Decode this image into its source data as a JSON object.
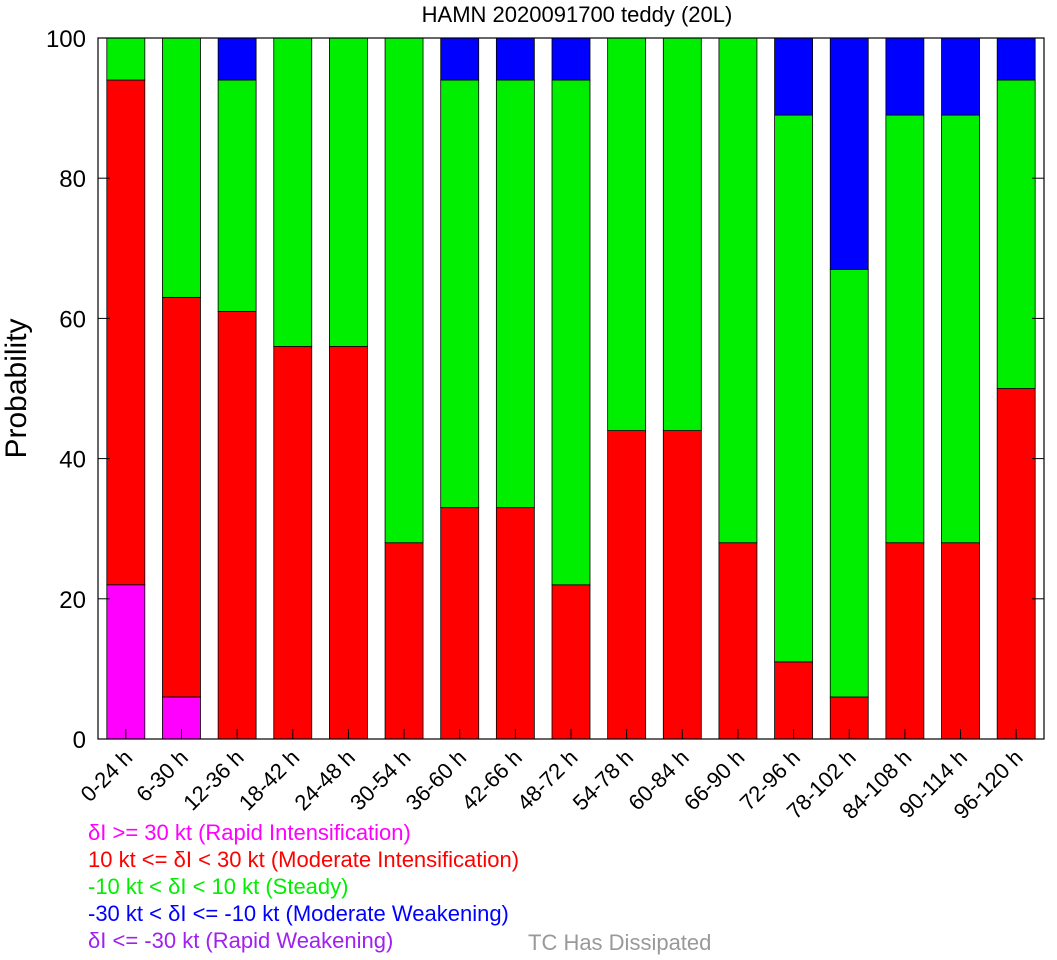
{
  "chart_data": {
    "type": "bar",
    "stacked": true,
    "title": "HAMN 2020091700 teddy (20L)",
    "xlabel": "",
    "ylabel": "Probability",
    "ylim": [
      0,
      100
    ],
    "yticks": [
      0,
      20,
      40,
      60,
      80,
      100
    ],
    "categories": [
      "0-24 h",
      "6-30 h",
      "12-36 h",
      "18-42 h",
      "24-48 h",
      "30-54 h",
      "36-60 h",
      "42-66 h",
      "48-72 h",
      "54-78 h",
      "60-84 h",
      "66-90 h",
      "72-96 h",
      "78-102 h",
      "84-108 h",
      "90-114 h",
      "96-120 h"
    ],
    "series": [
      {
        "name": "δI >= 30 kt (Rapid Intensification)",
        "color": "#ff00ff",
        "values": [
          22,
          6,
          0,
          0,
          0,
          0,
          0,
          0,
          0,
          0,
          0,
          0,
          0,
          0,
          0,
          0,
          0
        ]
      },
      {
        "name": "10 kt <= δI < 30 kt (Moderate Intensification)",
        "color": "#ff0000",
        "values": [
          72,
          57,
          61,
          56,
          56,
          28,
          33,
          33,
          22,
          44,
          44,
          28,
          11,
          6,
          28,
          28,
          50
        ]
      },
      {
        "name": "-10 kt < δI < 10 kt (Steady)",
        "color": "#00ee00",
        "values": [
          6,
          37,
          33,
          44,
          44,
          72,
          61,
          61,
          72,
          56,
          56,
          72,
          78,
          61,
          61,
          61,
          44
        ]
      },
      {
        "name": "-30 kt < δI <= -10 kt (Moderate Weakening)",
        "color": "#0000ff",
        "values": [
          0,
          0,
          6,
          0,
          0,
          0,
          6,
          6,
          6,
          0,
          0,
          0,
          11,
          33,
          11,
          11,
          6
        ]
      },
      {
        "name": "δI <= -30 kt (Rapid Weakening)",
        "color": "#a020f0",
        "values": [
          0,
          0,
          0,
          0,
          0,
          0,
          0,
          0,
          0,
          0,
          0,
          0,
          0,
          0,
          0,
          0,
          0
        ]
      }
    ],
    "extra_legend": {
      "label": "TC Has Dissipated",
      "color": "#999999"
    },
    "grid": false,
    "legend_position": "bottom-left"
  }
}
